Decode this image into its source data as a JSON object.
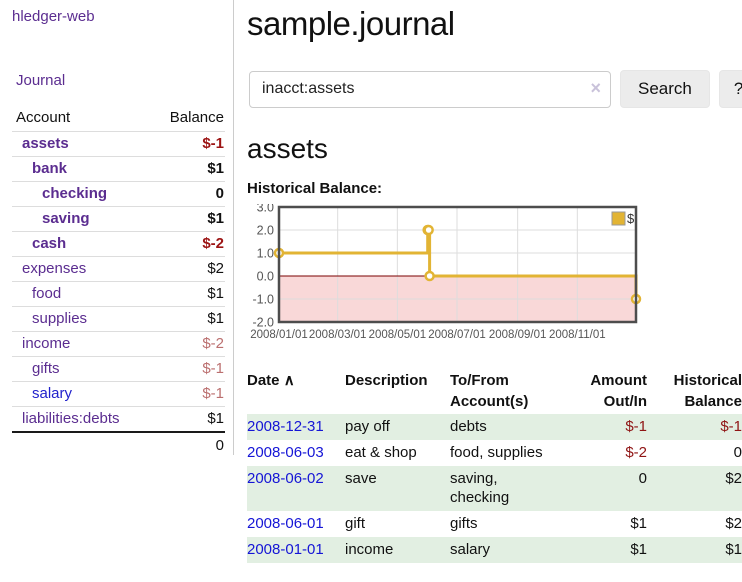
{
  "app": {
    "brand": "hledger-web",
    "nav_journal": "Journal"
  },
  "colors": {
    "link_purple": "#5b2d90",
    "link_blue": "#1515d6",
    "negative_strong": "#9c1313",
    "negative_soft": "#bb6f6f",
    "row_green": "#e2efe2",
    "series_gold": "#e2b434",
    "negative_region_pink": "#f9d8d8",
    "zero_line_red": "#7a0000"
  },
  "sidebar": {
    "header": {
      "account": "Account",
      "balance": "Balance"
    },
    "rows": [
      {
        "label": "assets",
        "balance": "$-1",
        "indent": 1,
        "bold": true,
        "balance_class": "neg-strong"
      },
      {
        "label": "bank",
        "balance": "$1",
        "indent": 2,
        "bold": true,
        "balance_class": ""
      },
      {
        "label": "checking",
        "balance": "0",
        "indent": 3,
        "bold": true,
        "balance_class": ""
      },
      {
        "label": "saving",
        "balance": "$1",
        "indent": 3,
        "bold": true,
        "balance_class": ""
      },
      {
        "label": "cash",
        "balance": "$-2",
        "indent": 2,
        "bold": true,
        "balance_class": "neg-strong"
      },
      {
        "label": "expenses",
        "balance": "$2",
        "indent": 1,
        "bold": false,
        "balance_class": ""
      },
      {
        "label": "food",
        "balance": "$1",
        "indent": 2,
        "bold": false,
        "balance_class": ""
      },
      {
        "label": "supplies",
        "balance": "$1",
        "indent": 2,
        "bold": false,
        "balance_class": ""
      },
      {
        "label": "income",
        "balance": "$-2",
        "indent": 1,
        "bold": false,
        "balance_class": "neg-soft"
      },
      {
        "label": "gifts",
        "balance": "$-1",
        "indent": 2,
        "bold": false,
        "balance_class": "neg-soft"
      },
      {
        "label": "salary",
        "balance": "$-1",
        "indent": 2,
        "bold": false,
        "balance_class": "neg-soft",
        "label_color": "blue"
      },
      {
        "label": "liabilities:debts",
        "balance": "$1",
        "indent": 1,
        "bold": false,
        "balance_class": ""
      }
    ],
    "total": "0"
  },
  "main": {
    "title": "sample.journal",
    "search": {
      "value": "inacct:assets",
      "clear_icon": "×",
      "button_label": "Search",
      "help_label": "?"
    },
    "account_heading": "assets",
    "chart_label": "Historical Balance:"
  },
  "chart_data": {
    "type": "line",
    "step": true,
    "title": "Historical Balance",
    "series": [
      {
        "name": "$",
        "color": "#e2b434",
        "points": [
          {
            "date": "2008-01-01",
            "balance": 1
          },
          {
            "date": "2008-06-01",
            "balance": 2
          },
          {
            "date": "2008-06-02",
            "balance": 2
          },
          {
            "date": "2008-06-03",
            "balance": 0
          },
          {
            "date": "2008-12-31",
            "balance": -1
          }
        ]
      }
    ],
    "xlim": [
      "2008-01-01",
      "2008-12-31"
    ],
    "ylim": [
      -2.0,
      3.0
    ],
    "y_ticks": [
      "3.0",
      "2.0",
      "1.0",
      "0.0",
      "-1.0",
      "-2.0"
    ],
    "x_tick_labels": [
      "2008/01/01",
      "2008/03/01",
      "2008/05/01",
      "2008/07/01",
      "2008/09/01",
      "2008/11/01"
    ],
    "grid": true,
    "legend": {
      "label": "$",
      "position": "top-right"
    },
    "negative_region_fill": "#f9d8d8",
    "zero_line_color": "#7a0000"
  },
  "table": {
    "sort_icon": "∧",
    "headers": [
      {
        "line1": "Date",
        "line2": ""
      },
      {
        "line1": "Description",
        "line2": ""
      },
      {
        "line1": "To/From",
        "line2": "Account(s)"
      },
      {
        "line1": "Amount",
        "line2": "Out/In"
      },
      {
        "line1": "Historical",
        "line2": "Balance"
      }
    ],
    "rows": [
      {
        "date": "2008-12-31",
        "description": "pay off",
        "accounts": "debts",
        "amount": "$-1",
        "amount_neg": true,
        "balance": "$-1",
        "balance_neg": true
      },
      {
        "date": "2008-06-03",
        "description": "eat & shop",
        "accounts": "food, supplies",
        "amount": "$-2",
        "amount_neg": true,
        "balance": "0",
        "balance_neg": false
      },
      {
        "date": "2008-06-02",
        "description": "save",
        "accounts": "saving, checking",
        "amount": "0",
        "amount_neg": false,
        "balance": "$2",
        "balance_neg": false
      },
      {
        "date": "2008-06-01",
        "description": "gift",
        "accounts": "gifts",
        "amount": "$1",
        "amount_neg": false,
        "balance": "$2",
        "balance_neg": false
      },
      {
        "date": "2008-01-01",
        "description": "income",
        "accounts": "salary",
        "amount": "$1",
        "amount_neg": false,
        "balance": "$1",
        "balance_neg": false
      }
    ]
  }
}
